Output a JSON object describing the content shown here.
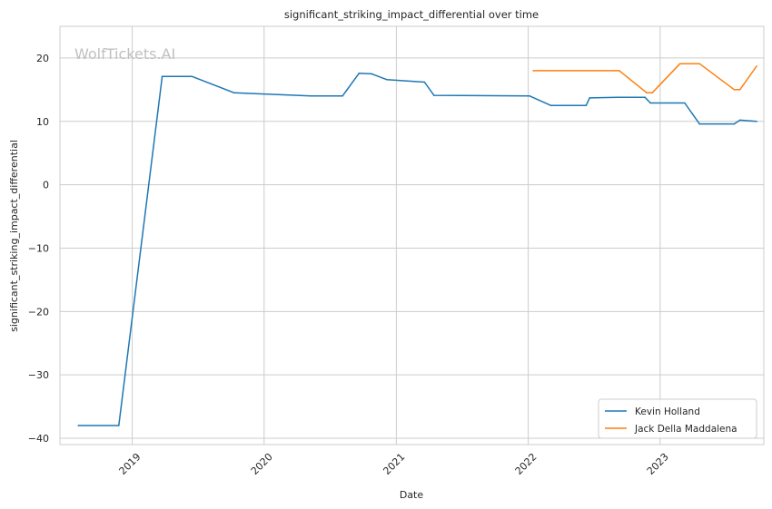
{
  "chart_data": {
    "type": "line",
    "title": "significant_striking_impact_differential over time",
    "xlabel": "Date",
    "ylabel": "significant_striking_impact_differential",
    "watermark": "WolfTickets.AI",
    "xlim": [
      "2018-06-15",
      "2023-10-15"
    ],
    "ylim": [
      -41,
      25
    ],
    "x_ticks": [
      "2019-01-01",
      "2020-01-01",
      "2021-01-01",
      "2022-01-01",
      "2023-01-01"
    ],
    "x_tick_labels": [
      "2019",
      "2020",
      "2021",
      "2022",
      "2023"
    ],
    "y_ticks": [
      20,
      10,
      0,
      -10,
      -20,
      -30,
      -40
    ],
    "y_tick_labels": [
      "20",
      "10",
      "0",
      "−10",
      "−20",
      "−30",
      "−40"
    ],
    "grid": true,
    "legend_position": "bottom-right",
    "series": [
      {
        "name": "Kevin Holland",
        "color": "#1f77b4",
        "points": [
          {
            "x": "2018-08-05",
            "y": -38
          },
          {
            "x": "2018-11-25",
            "y": -38
          },
          {
            "x": "2019-03-25",
            "y": 17.1
          },
          {
            "x": "2019-06-15",
            "y": 17.1
          },
          {
            "x": "2019-10-10",
            "y": 14.5
          },
          {
            "x": "2020-05-10",
            "y": 14.0
          },
          {
            "x": "2020-08-05",
            "y": 14.0
          },
          {
            "x": "2020-09-20",
            "y": 17.6
          },
          {
            "x": "2020-10-25",
            "y": 17.5
          },
          {
            "x": "2020-12-05",
            "y": 16.6
          },
          {
            "x": "2021-03-20",
            "y": 16.2
          },
          {
            "x": "2021-04-15",
            "y": 14.1
          },
          {
            "x": "2022-01-05",
            "y": 14.0
          },
          {
            "x": "2022-03-05",
            "y": 12.5
          },
          {
            "x": "2022-06-10",
            "y": 12.5
          },
          {
            "x": "2022-06-20",
            "y": 13.7
          },
          {
            "x": "2022-09-05",
            "y": 13.8
          },
          {
            "x": "2022-11-20",
            "y": 13.8
          },
          {
            "x": "2022-12-05",
            "y": 12.9
          },
          {
            "x": "2023-03-10",
            "y": 12.9
          },
          {
            "x": "2023-04-20",
            "y": 9.6
          },
          {
            "x": "2023-07-25",
            "y": 9.6
          },
          {
            "x": "2023-08-10",
            "y": 10.2
          },
          {
            "x": "2023-09-25",
            "y": 10.0
          }
        ]
      },
      {
        "name": "Jack Della Maddalena",
        "color": "#ff7f0e",
        "points": [
          {
            "x": "2022-01-15",
            "y": 18.0
          },
          {
            "x": "2022-09-10",
            "y": 18.0
          },
          {
            "x": "2022-11-25",
            "y": 14.5
          },
          {
            "x": "2022-12-10",
            "y": 14.5
          },
          {
            "x": "2023-02-25",
            "y": 19.1
          },
          {
            "x": "2023-04-20",
            "y": 19.1
          },
          {
            "x": "2023-07-25",
            "y": 15.0
          },
          {
            "x": "2023-08-10",
            "y": 15.0
          },
          {
            "x": "2023-09-25",
            "y": 18.7
          }
        ]
      }
    ]
  }
}
